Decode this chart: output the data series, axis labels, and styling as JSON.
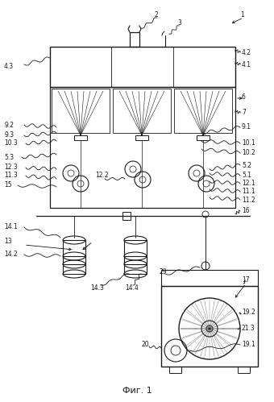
{
  "title": "Фиг. 1",
  "bg_color": "#ffffff",
  "line_color": "#1a1a1a",
  "fig_width": 3.4,
  "fig_height": 4.99,
  "dpi": 100
}
